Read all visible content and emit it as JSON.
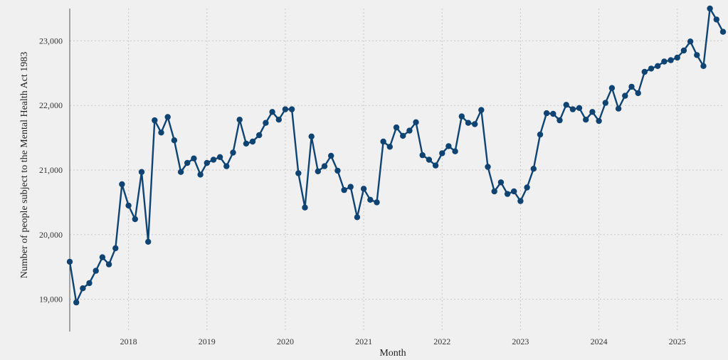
{
  "chart_data": {
    "type": "line",
    "title": "",
    "xlabel": "Month",
    "ylabel": "Number of people subject to the Mental Health Act 1983",
    "x_tick_labels": [
      "2018",
      "2019",
      "2020",
      "2021",
      "2022",
      "2023",
      "2024",
      "2025"
    ],
    "y_tick_labels": [
      "19,000",
      "20,000",
      "21,000",
      "22,000",
      "23,000"
    ],
    "y_ticks": [
      19000,
      20000,
      21000,
      22000,
      23000
    ],
    "ylim": [
      18500,
      23500
    ],
    "x_range": [
      "2017-04",
      "2025-08"
    ],
    "grid": true,
    "legend": "none",
    "colors": {
      "series": "#0f4472",
      "grid": "#c8c8c8",
      "background": "#f0f0f0"
    },
    "series": [
      {
        "name": "People subject to the Mental Health Act 1983",
        "x": [
          "2017-04",
          "2017-05",
          "2017-06",
          "2017-07",
          "2017-08",
          "2017-09",
          "2017-10",
          "2017-11",
          "2017-12",
          "2018-01",
          "2018-02",
          "2018-03",
          "2018-04",
          "2018-05",
          "2018-06",
          "2018-07",
          "2018-08",
          "2018-09",
          "2018-10",
          "2018-11",
          "2018-12",
          "2019-01",
          "2019-02",
          "2019-03",
          "2019-04",
          "2019-05",
          "2019-06",
          "2019-07",
          "2019-08",
          "2019-09",
          "2019-10",
          "2019-11",
          "2019-12",
          "2020-01",
          "2020-02",
          "2020-03",
          "2020-04",
          "2020-05",
          "2020-06",
          "2020-07",
          "2020-08",
          "2020-09",
          "2020-10",
          "2020-11",
          "2020-12",
          "2021-01",
          "2021-02",
          "2021-03",
          "2021-04",
          "2021-05",
          "2021-06",
          "2021-07",
          "2021-08",
          "2021-09",
          "2021-10",
          "2021-11",
          "2021-12",
          "2022-01",
          "2022-02",
          "2022-03",
          "2022-04",
          "2022-05",
          "2022-06",
          "2022-07",
          "2022-08",
          "2022-09",
          "2022-10",
          "2022-11",
          "2022-12",
          "2023-01",
          "2023-02",
          "2023-03",
          "2023-04",
          "2023-05",
          "2023-06",
          "2023-07",
          "2023-08",
          "2023-09",
          "2023-10",
          "2023-11",
          "2023-12",
          "2024-01",
          "2024-02",
          "2024-03",
          "2024-04",
          "2024-05",
          "2024-06",
          "2024-07",
          "2024-08",
          "2024-09",
          "2024-10",
          "2024-11",
          "2024-12",
          "2025-01",
          "2025-02",
          "2025-03",
          "2025-04",
          "2025-05",
          "2025-06",
          "2025-07",
          "2025-08"
        ],
        "values": [
          19580,
          18950,
          19170,
          19250,
          19440,
          19650,
          19540,
          19790,
          20780,
          20450,
          20240,
          20970,
          19890,
          21770,
          21580,
          21820,
          21460,
          20970,
          21110,
          21180,
          20930,
          21110,
          21160,
          21200,
          21060,
          21270,
          21780,
          21410,
          21440,
          21540,
          21730,
          21900,
          21780,
          21940,
          21940,
          20950,
          20420,
          21520,
          20980,
          21060,
          21220,
          20990,
          20690,
          20740,
          20270,
          20710,
          20540,
          20500,
          21440,
          21360,
          21660,
          21530,
          21610,
          21740,
          21230,
          21160,
          21070,
          21260,
          21370,
          21290,
          21830,
          21730,
          21710,
          21930,
          21050,
          20670,
          20810,
          20630,
          20670,
          20520,
          20730,
          21020,
          21550,
          21880,
          21870,
          21770,
          22010,
          21940,
          21960,
          21780,
          21900,
          21760,
          22040,
          22270,
          21950,
          22150,
          22290,
          22190,
          22520,
          22570,
          22610,
          22680,
          22700,
          22740,
          22850,
          22990,
          22780,
          22610,
          23500,
          23330,
          23140
        ]
      }
    ]
  }
}
